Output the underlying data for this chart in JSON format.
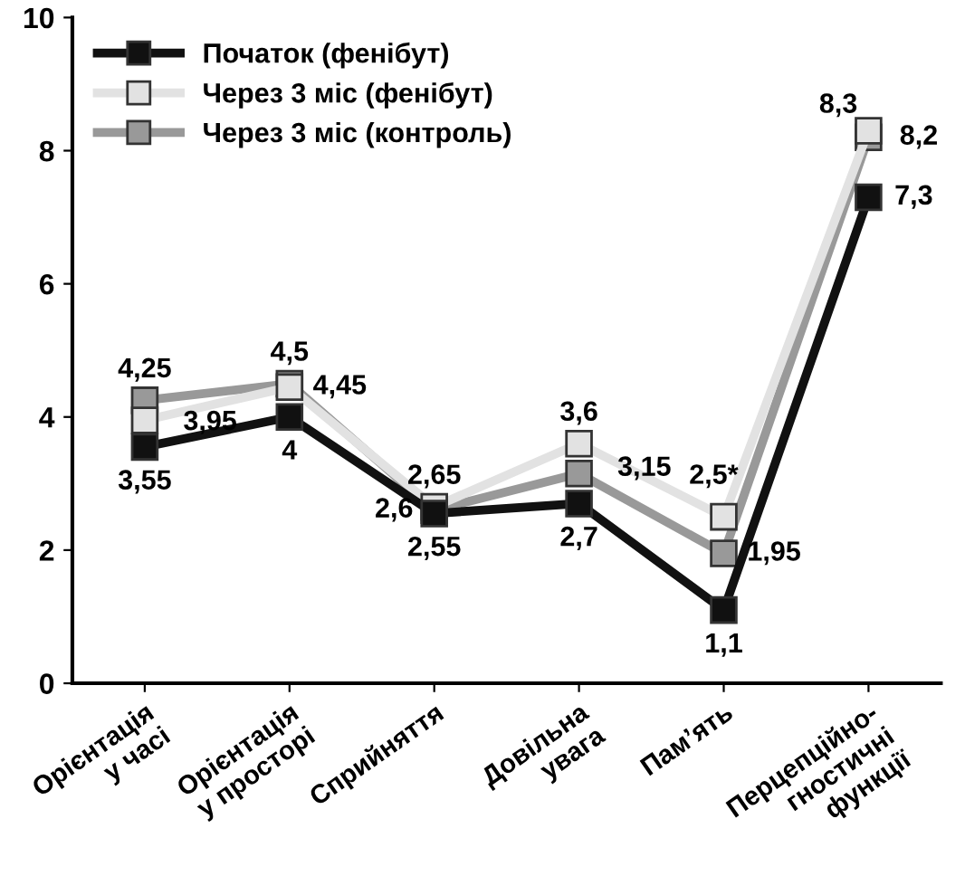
{
  "chart_data": {
    "type": "line",
    "categories": [
      "Орієнтація\nу часі",
      "Орієнтація\nу просторі",
      "Сприйняття",
      "Довільна\nувага",
      "Пам’ять",
      "Перцепційно-\nгностичні\nфункції"
    ],
    "series": [
      {
        "name": "Початок (фенібут)",
        "color": "#111111",
        "values": [
          3.55,
          4,
          2.55,
          2.7,
          1.1,
          7.3
        ],
        "value_labels": [
          "3,55",
          "4",
          "2,55",
          "2,7",
          "1,1",
          "7,3"
        ]
      },
      {
        "name": "Через 3 міс (фенібут)",
        "color": "#e2e2e2",
        "values": [
          3.95,
          4.45,
          2.65,
          3.6,
          2.5,
          8.3
        ],
        "value_labels": [
          "3,95",
          "4,45",
          "2,65",
          "3,6",
          "2,5*",
          "8,3"
        ]
      },
      {
        "name": "Через 3 міс (контроль)",
        "color": "#999999",
        "values": [
          4.25,
          4.5,
          2.6,
          3.15,
          1.95,
          8.2
        ],
        "value_labels": [
          "4,25",
          "4,5",
          "2,6",
          "3,15",
          "1,95",
          "8,2"
        ]
      }
    ],
    "ylim": [
      0,
      10
    ],
    "yticks": [
      0,
      2,
      4,
      6,
      8,
      10
    ],
    "grid": false,
    "legend": "top left",
    "marker": "square",
    "line_style": "solid"
  }
}
